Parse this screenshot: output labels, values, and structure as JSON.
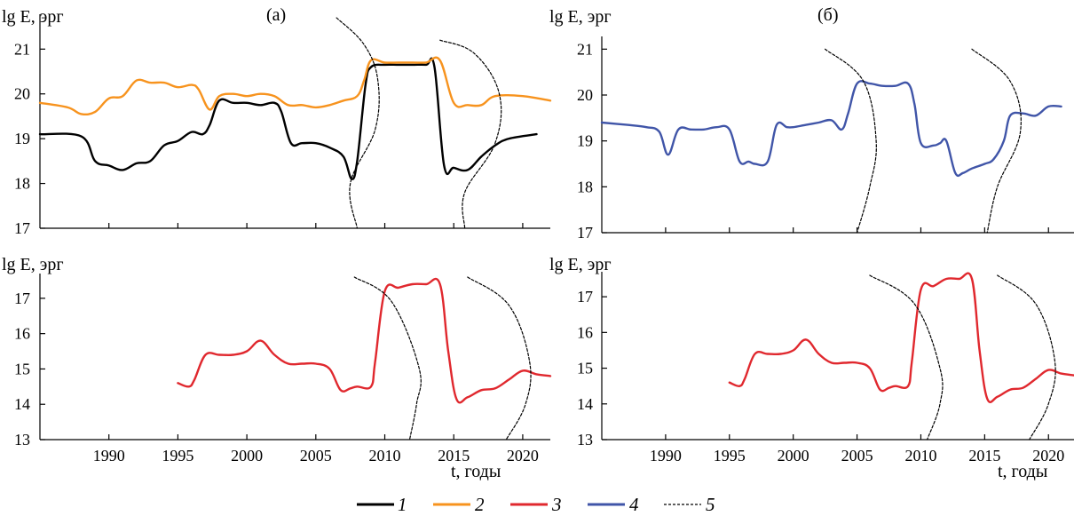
{
  "panel_labels": {
    "left": "(а)",
    "right": "(б)"
  },
  "x_axis_label": "t, годы",
  "y_axis_label": "lg E, эрг",
  "legend": [
    {
      "label": "1",
      "color": "#000000",
      "style": "solid"
    },
    {
      "label": "2",
      "color": "#F7931E",
      "style": "solid"
    },
    {
      "label": "3",
      "color": "#E0282E",
      "style": "solid"
    },
    {
      "label": "4",
      "color": "#4055A8",
      "style": "solid"
    },
    {
      "label": "5",
      "color": "#000000",
      "style": "dashed"
    }
  ],
  "chart_data": [
    {
      "id": "a-top",
      "type": "line",
      "panel": "(а)",
      "ylabel": "lg E, эрг",
      "xlim": [
        1985,
        2022
      ],
      "ylim": [
        17,
        21.7
      ],
      "yticks": [
        17,
        18,
        19,
        20,
        21
      ],
      "series": [
        {
          "name": "1",
          "color": "#000000",
          "x": [
            1985,
            1988,
            1989,
            1990,
            1991,
            1992,
            1993,
            1994,
            1995,
            1996,
            1996.8,
            1997.3,
            1998,
            1999,
            2000,
            2001,
            2002,
            2002.5,
            2003.2,
            2004,
            2005,
            2006,
            2007,
            2007.6,
            2008,
            2008.6,
            2009,
            2010,
            2011,
            2012,
            2013,
            2013.6,
            2014.3,
            2015,
            2016,
            2017,
            2018,
            2019,
            2021
          ],
          "y": [
            19.1,
            19.05,
            18.5,
            18.4,
            18.3,
            18.45,
            18.5,
            18.85,
            18.95,
            19.15,
            19.1,
            19.3,
            19.85,
            19.8,
            19.8,
            19.75,
            19.8,
            19.6,
            18.9,
            18.9,
            18.9,
            18.8,
            18.6,
            18.1,
            18.5,
            20.2,
            20.6,
            20.65,
            20.65,
            20.65,
            20.65,
            20.6,
            18.4,
            18.35,
            18.3,
            18.6,
            18.85,
            19.0,
            19.1
          ]
        },
        {
          "name": "2",
          "color": "#F7931E",
          "x": [
            1985,
            1987,
            1988,
            1989,
            1990,
            1991,
            1992,
            1993,
            1994,
            1995,
            1996,
            1996.5,
            1997.3,
            1998,
            1999,
            2000,
            2001,
            2002,
            2003,
            2004,
            2005,
            2006,
            2007,
            2008,
            2008.5,
            2009,
            2010,
            2011,
            2012,
            2013,
            2014,
            2015,
            2016,
            2017,
            2018,
            2020,
            2022
          ],
          "y": [
            19.8,
            19.7,
            19.55,
            19.6,
            19.9,
            19.95,
            20.3,
            20.25,
            20.25,
            20.15,
            20.2,
            20.1,
            19.65,
            19.95,
            20.0,
            19.95,
            20.0,
            19.95,
            19.75,
            19.75,
            19.7,
            19.75,
            19.85,
            19.95,
            20.3,
            20.75,
            20.7,
            20.7,
            20.7,
            20.7,
            20.75,
            19.8,
            19.75,
            19.75,
            19.95,
            19.95,
            19.85
          ]
        },
        {
          "name": "5",
          "color": "#000000",
          "style": "dashed",
          "x": [
            2006.5,
            2008.5,
            2009.5,
            2009.3,
            2007.5,
            2008.0
          ],
          "y": [
            21.7,
            21.1,
            20.3,
            19.2,
            18.0,
            17.0
          ]
        },
        {
          "name": "5",
          "color": "#000000",
          "style": "dashed",
          "x": [
            2014.0,
            2016.5,
            2018.3,
            2018.0,
            2015.8,
            2015.8
          ],
          "y": [
            21.2,
            20.9,
            20.0,
            18.9,
            17.8,
            17.0
          ]
        }
      ]
    },
    {
      "id": "a-bottom",
      "type": "line",
      "ylabel": "lg E, эрг",
      "xlabel": "t, годы",
      "xlim": [
        1985,
        2022
      ],
      "ylim": [
        13,
        17.6
      ],
      "yticks": [
        13,
        14,
        15,
        16,
        17
      ],
      "xticks": [
        1990,
        1995,
        2000,
        2005,
        2010,
        2015,
        2020
      ],
      "series": [
        {
          "name": "3",
          "color": "#E0282E",
          "x": [
            1995,
            1995.8,
            1996.2,
            1997,
            1998,
            1999,
            2000,
            2001,
            2002,
            2003,
            2004,
            2005,
            2006,
            2006.8,
            2007.5,
            2008,
            2009,
            2009.3,
            2010,
            2011,
            2012,
            2013,
            2014,
            2014.6,
            2015.2,
            2016,
            2017,
            2018,
            2019,
            2020,
            2021,
            2022
          ],
          "y": [
            14.6,
            14.5,
            14.7,
            15.4,
            15.4,
            15.4,
            15.5,
            15.8,
            15.4,
            15.15,
            15.15,
            15.15,
            15.0,
            14.4,
            14.45,
            14.5,
            14.5,
            15.2,
            17.2,
            17.3,
            17.4,
            17.4,
            17.4,
            15.5,
            14.15,
            14.2,
            14.4,
            14.45,
            14.7,
            14.95,
            14.85,
            14.8
          ]
        },
        {
          "name": "5",
          "color": "#000000",
          "style": "dashed",
          "x": [
            2007.8,
            2010.5,
            2012.5,
            2012.3,
            2011.8
          ],
          "y": [
            17.6,
            16.9,
            15.0,
            14.0,
            13.0
          ]
        },
        {
          "name": "5",
          "color": "#000000",
          "style": "dashed",
          "x": [
            2016.0,
            2019.0,
            2020.5,
            2020.2,
            2018.8
          ],
          "y": [
            17.6,
            16.8,
            15.2,
            14.0,
            13.0
          ]
        }
      ]
    },
    {
      "id": "b-top",
      "type": "line",
      "panel": "(б)",
      "ylabel": "lg E, эрг",
      "xlim": [
        1985,
        2022
      ],
      "ylim": [
        17,
        21.2
      ],
      "yticks": [
        17,
        18,
        19,
        20,
        21
      ],
      "series": [
        {
          "name": "4",
          "color": "#4055A8",
          "x": [
            1985,
            1987,
            1988.5,
            1989.5,
            1990.2,
            1991,
            1992,
            1993,
            1994,
            1995,
            1995.8,
            1996.5,
            1997,
            1998,
            1998.7,
            1999.5,
            2000,
            2001,
            2002,
            2003,
            2003.8,
            2004.3,
            2005,
            2006,
            2007,
            2008,
            2009,
            2009.5,
            2010,
            2011,
            2011.5,
            2012,
            2012.7,
            2013.3,
            2014,
            2015,
            2015.7,
            2016.5,
            2017,
            2018,
            2019,
            2020,
            2021
          ],
          "y": [
            19.4,
            19.35,
            19.3,
            19.2,
            18.7,
            19.25,
            19.25,
            19.25,
            19.3,
            19.25,
            18.55,
            18.55,
            18.5,
            18.55,
            19.35,
            19.3,
            19.3,
            19.35,
            19.4,
            19.45,
            19.25,
            19.6,
            20.25,
            20.25,
            20.2,
            20.2,
            20.25,
            19.8,
            18.95,
            18.9,
            18.95,
            19.0,
            18.3,
            18.3,
            18.4,
            18.5,
            18.6,
            19.0,
            19.55,
            19.6,
            19.55,
            19.75,
            19.75
          ]
        },
        {
          "name": "5",
          "color": "#000000",
          "style": "dashed",
          "x": [
            2002.5,
            2005.5,
            2006.5,
            2006.0,
            2005.0
          ],
          "y": [
            21.0,
            20.3,
            19.0,
            18.0,
            17.0
          ]
        },
        {
          "name": "5",
          "color": "#000000",
          "style": "dashed",
          "x": [
            2014.0,
            2017.0,
            2017.8,
            2016.0,
            2015.2
          ],
          "y": [
            21.0,
            20.3,
            19.2,
            18.0,
            17.0
          ]
        }
      ]
    },
    {
      "id": "b-bottom",
      "type": "line",
      "ylabel": "lg E, эрг",
      "xlabel": "t, годы",
      "xlim": [
        1985,
        2022
      ],
      "ylim": [
        13,
        17.6
      ],
      "yticks": [
        13,
        14,
        15,
        16,
        17
      ],
      "xticks": [
        1990,
        1995,
        2000,
        2005,
        2010,
        2015,
        2020
      ],
      "series": [
        {
          "name": "3",
          "color": "#E0282E",
          "x": [
            1995,
            1995.8,
            1996.2,
            1997,
            1998,
            1999,
            2000,
            2001,
            2002,
            2003,
            2004,
            2005,
            2006,
            2006.8,
            2007.5,
            2008,
            2009,
            2009.3,
            2010,
            2011,
            2012,
            2013,
            2014,
            2014.6,
            2015.2,
            2016,
            2017,
            2018,
            2019,
            2020,
            2021,
            2022
          ],
          "y": [
            14.6,
            14.5,
            14.7,
            15.4,
            15.4,
            15.4,
            15.5,
            15.8,
            15.4,
            15.15,
            15.15,
            15.15,
            15.0,
            14.4,
            14.45,
            14.5,
            14.5,
            15.2,
            17.2,
            17.3,
            17.5,
            17.5,
            17.5,
            15.5,
            14.15,
            14.2,
            14.4,
            14.45,
            14.7,
            14.95,
            14.85,
            14.8
          ]
        },
        {
          "name": "5",
          "color": "#000000",
          "style": "dashed",
          "x": [
            2006.0,
            2009.5,
            2011.5,
            2011.5,
            2010.5
          ],
          "y": [
            17.6,
            16.8,
            15.0,
            14.0,
            13.0
          ]
        },
        {
          "name": "5",
          "color": "#000000",
          "style": "dashed",
          "x": [
            2016.0,
            2019.0,
            2020.5,
            2020.0,
            2018.5
          ],
          "y": [
            17.6,
            16.8,
            15.2,
            14.0,
            13.0
          ]
        }
      ]
    }
  ]
}
